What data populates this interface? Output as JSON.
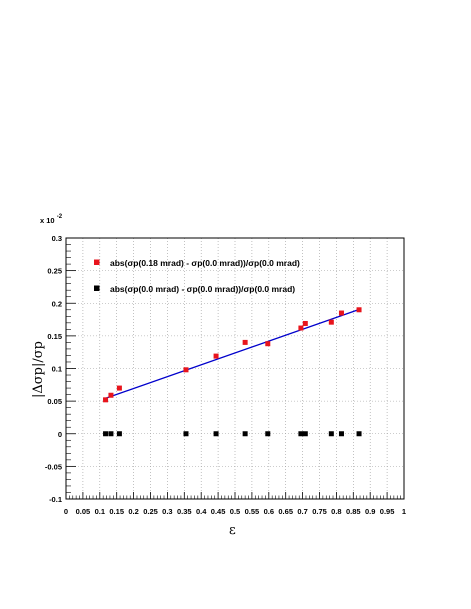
{
  "chart_data": {
    "type": "scatter",
    "exponent_label": "x 10",
    "exponent_value": "-2",
    "xlabel": "ε",
    "ylabel": "|Δσp|/σp",
    "xlim": [
      0,
      1
    ],
    "ylim": [
      -0.1,
      0.3
    ],
    "x_ticks": [
      "0",
      "0.05",
      "0.1",
      "0.15",
      "0.2",
      "0.25",
      "0.3",
      "0.35",
      "0.4",
      "0.45",
      "0.5",
      "0.55",
      "0.6",
      "0.65",
      "0.7",
      "0.75",
      "0.8",
      "0.85",
      "0.9",
      "0.95",
      "1"
    ],
    "y_ticks": [
      "-0.1",
      "-0.05",
      "0",
      "0.05",
      "0.1",
      "0.15",
      "0.2",
      "0.25",
      "0.3"
    ],
    "grid": true,
    "legend_placement": "top-left",
    "series": [
      {
        "name": "abs(σp(0.18 mrad) - σp(0.0 mrad))/σp(0.0 mrad)",
        "color": "#e8141c",
        "x": [
          0.117,
          0.133,
          0.158,
          0.355,
          0.444,
          0.53,
          0.597,
          0.695,
          0.708,
          0.785,
          0.815,
          0.867
        ],
        "y": [
          0.052,
          0.059,
          0.07,
          0.098,
          0.119,
          0.14,
          0.138,
          0.162,
          0.169,
          0.171,
          0.185,
          0.19
        ]
      },
      {
        "name": "abs(σp(0.0 mrad) - σp(0.0 mrad))/σp(0.0 mrad)",
        "color": "#000000",
        "x": [
          0.117,
          0.133,
          0.158,
          0.355,
          0.444,
          0.53,
          0.597,
          0.695,
          0.708,
          0.785,
          0.815,
          0.867
        ],
        "y": [
          0,
          0,
          0,
          0,
          0,
          0,
          0,
          0,
          0,
          0,
          0,
          0
        ]
      }
    ],
    "fit_line": {
      "color": "#0000cc",
      "x": [
        0.11,
        0.87
      ],
      "y": [
        0.053,
        0.191
      ]
    }
  }
}
